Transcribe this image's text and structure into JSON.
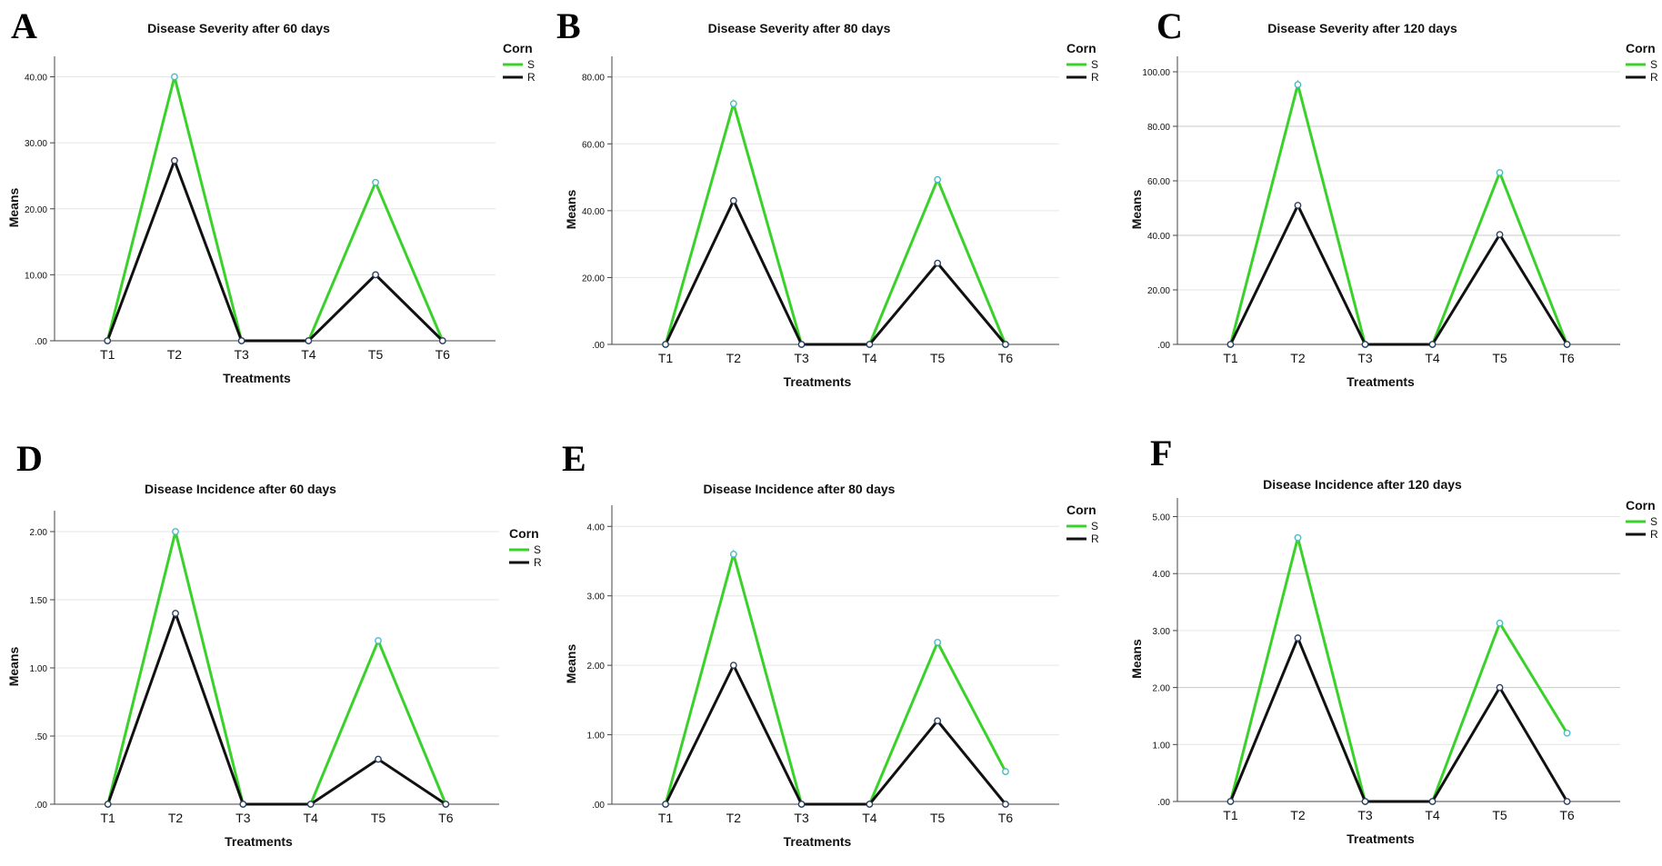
{
  "colors": {
    "series_S": "#39d12a",
    "series_R": "#111111",
    "marker_S": "#4fb9c2",
    "marker_R": "#2f3f5f",
    "grid_light": "#e6e6e6",
    "grid_dark": "#c8c8c8",
    "axis": "#444444"
  },
  "chart_data": [
    {
      "panel": "A",
      "type": "line",
      "title": "Disease Severity after 60 days",
      "xlabel": "Treatments",
      "ylabel": "Means",
      "categories": [
        "T1",
        "T2",
        "T3",
        "T4",
        "T5",
        "T6"
      ],
      "yticks": [
        ".00",
        "10.00",
        "20.00",
        "30.00",
        "40.00"
      ],
      "ylim": [
        0,
        42
      ],
      "grid": true,
      "legend": {
        "title": "Corn",
        "position": "top-right"
      },
      "series": [
        {
          "name": "S",
          "values": [
            0,
            40,
            0,
            0,
            24,
            0
          ]
        },
        {
          "name": "R",
          "values": [
            0,
            27.3,
            0,
            0,
            10,
            0
          ]
        }
      ]
    },
    {
      "panel": "B",
      "type": "line",
      "title": "Disease Severity after 80 days",
      "xlabel": "Treatments",
      "ylabel": "Means",
      "categories": [
        "T1",
        "T2",
        "T3",
        "T4",
        "T5",
        "T6"
      ],
      "yticks": [
        ".00",
        "20.00",
        "40.00",
        "60.00",
        "80.00"
      ],
      "ylim": [
        0,
        84
      ],
      "grid": true,
      "legend": {
        "title": "Corn",
        "position": "top-right"
      },
      "series": [
        {
          "name": "S",
          "values": [
            0,
            72,
            0,
            0,
            49.3,
            0
          ]
        },
        {
          "name": "R",
          "values": [
            0,
            43,
            0,
            0,
            24.3,
            0
          ]
        }
      ]
    },
    {
      "panel": "C",
      "type": "line",
      "title": "Disease Severity after 120 days",
      "xlabel": "Treatments",
      "ylabel": "Means",
      "categories": [
        "T1",
        "T2",
        "T3",
        "T4",
        "T5",
        "T6"
      ],
      "yticks": [
        ".00",
        "20.00",
        "40.00",
        "60.00",
        "80.00",
        "100.00"
      ],
      "ylim": [
        0,
        103
      ],
      "grid": true,
      "legend": {
        "title": "Corn",
        "position": "top-right"
      },
      "series": [
        {
          "name": "S",
          "values": [
            0,
            95.3,
            0,
            0,
            63,
            0
          ]
        },
        {
          "name": "R",
          "values": [
            0,
            51,
            0,
            0,
            40.3,
            0
          ]
        }
      ]
    },
    {
      "panel": "D",
      "type": "line",
      "title": "Disease Incidence after 60 days",
      "xlabel": "Treatments",
      "ylabel": "Means",
      "categories": [
        "T1",
        "T2",
        "T3",
        "T4",
        "T5",
        "T6"
      ],
      "yticks": [
        ".00",
        ".50",
        "1.00",
        "1.50",
        "2.00"
      ],
      "ylim": [
        0,
        2.1
      ],
      "grid": true,
      "legend": {
        "title": "Corn",
        "position": "right"
      },
      "series": [
        {
          "name": "S",
          "values": [
            0,
            2.0,
            0,
            0,
            1.2,
            0
          ]
        },
        {
          "name": "R",
          "values": [
            0,
            1.4,
            0,
            0,
            0.33,
            0
          ]
        }
      ]
    },
    {
      "panel": "E",
      "type": "line",
      "title": "Disease Incidence after 80 days",
      "xlabel": "Treatments",
      "ylabel": "Means",
      "categories": [
        "T1",
        "T2",
        "T3",
        "T4",
        "T5",
        "T6"
      ],
      "yticks": [
        ".00",
        "1.00",
        "2.00",
        "3.00",
        "4.00"
      ],
      "ylim": [
        0,
        4.2
      ],
      "grid": true,
      "legend": {
        "title": "Corn",
        "position": "top-right"
      },
      "series": [
        {
          "name": "S",
          "values": [
            0,
            3.6,
            0,
            0,
            2.33,
            0.47
          ]
        },
        {
          "name": "R",
          "values": [
            0,
            2.0,
            0,
            0,
            1.2,
            0
          ]
        }
      ]
    },
    {
      "panel": "F",
      "type": "line",
      "title": "Disease Incidence after 120 days",
      "xlabel": "Treatments",
      "ylabel": "Means",
      "categories": [
        "T1",
        "T2",
        "T3",
        "T4",
        "T5",
        "T6"
      ],
      "yticks": [
        ".00",
        "1.00",
        "2.00",
        "3.00",
        "4.00",
        "5.00"
      ],
      "ylim": [
        0,
        5.2
      ],
      "grid": true,
      "legend": {
        "title": "Corn",
        "position": "top-right"
      },
      "series": [
        {
          "name": "S",
          "values": [
            0,
            4.63,
            0,
            0,
            3.13,
            1.2
          ]
        },
        {
          "name": "R",
          "values": [
            0,
            2.87,
            0,
            0,
            2.0,
            0
          ]
        }
      ]
    }
  ]
}
